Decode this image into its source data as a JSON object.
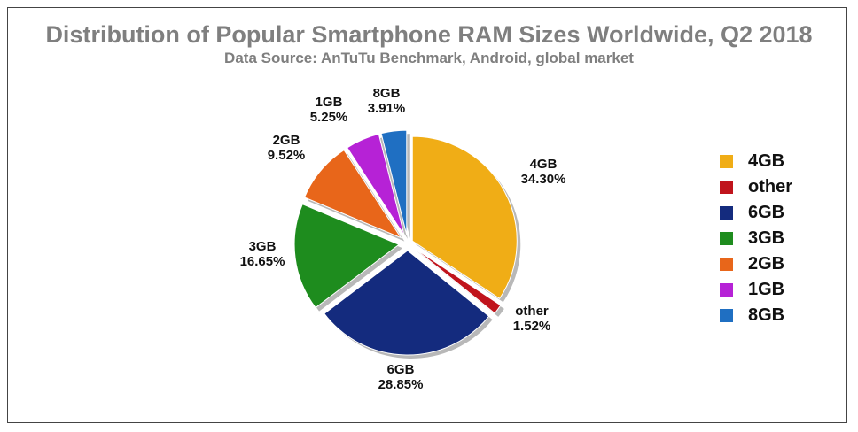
{
  "chart_data": {
    "type": "pie",
    "title": "Distribution of Popular Smartphone RAM Sizes Worldwide, Q2 2018",
    "subtitle": "Data Source: AnTuTu Benchmark, Android, global market",
    "slices": [
      {
        "name": "4GB",
        "value": 34.3,
        "label": "34.30%",
        "color": "#f0ad16"
      },
      {
        "name": "other",
        "value": 1.52,
        "label": "1.52%",
        "color": "#c0141c"
      },
      {
        "name": "6GB",
        "value": 28.85,
        "label": "28.85%",
        "color": "#142b7e"
      },
      {
        "name": "3GB",
        "value": 16.65,
        "label": "16.65%",
        "color": "#1e8c1e"
      },
      {
        "name": "2GB",
        "value": 9.52,
        "label": "9.52%",
        "color": "#e8661a"
      },
      {
        "name": "1GB",
        "value": 5.25,
        "label": "5.25%",
        "color": "#b622d6"
      },
      {
        "name": "8GB",
        "value": 3.91,
        "label": "3.91%",
        "color": "#1f6fc2"
      }
    ],
    "legend": [
      "4GB",
      "other",
      "6GB",
      "3GB",
      "2GB",
      "1GB",
      "8GB"
    ],
    "legend_position": "right"
  }
}
